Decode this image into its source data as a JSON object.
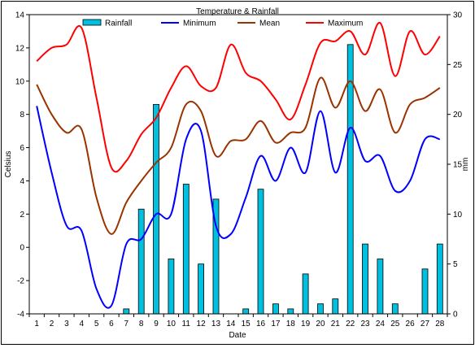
{
  "chart_data": {
    "type": "bar+line",
    "title": "Temperature & Rainfall",
    "xlabel": "Date",
    "ylabel_left": "Celsius",
    "ylabel_right": "mm",
    "categories": [
      "1",
      "2",
      "3",
      "4",
      "5",
      "6",
      "7",
      "8",
      "9",
      "10",
      "11",
      "12",
      "13",
      "14",
      "15",
      "16",
      "17",
      "18",
      "19",
      "20",
      "21",
      "22",
      "23",
      "24",
      "25",
      "26",
      "27",
      "28"
    ],
    "ylim_left": [
      -4,
      14
    ],
    "yticks_left": [
      "-4",
      "-2",
      "0",
      "2",
      "4",
      "6",
      "8",
      "10",
      "12",
      "14"
    ],
    "ylim_right": [
      0,
      30
    ],
    "yticks_right": [
      "0",
      "5",
      "10",
      "15",
      "20",
      "25",
      "30"
    ],
    "grid": false,
    "legend_position": "top",
    "legend": [
      {
        "label": "Rainfall",
        "kind": "bar",
        "color": "#00c0e0"
      },
      {
        "label": "Minimum",
        "kind": "line",
        "color": "#0000ff"
      },
      {
        "label": "Mean",
        "kind": "line",
        "color": "#993300"
      },
      {
        "label": "Maximum",
        "kind": "line",
        "color": "#ff0000"
      }
    ],
    "rainfall": [
      0,
      0,
      0,
      0,
      0,
      0,
      0.5,
      10.5,
      21,
      5.5,
      13,
      5,
      11.5,
      0,
      0.5,
      12.5,
      1,
      0.5,
      4,
      1,
      1.5,
      27,
      7,
      5.5,
      1,
      0,
      4.5,
      7
    ],
    "series": [
      {
        "name": "Minimum",
        "axis": "left",
        "color": "#0000ff",
        "values": [
          8.5,
          4.5,
          1.3,
          1.0,
          -2.5,
          -3.5,
          0.2,
          0.5,
          2.0,
          2.0,
          6.5,
          7.0,
          1.3,
          0.8,
          3.0,
          5.5,
          4.0,
          6.0,
          4.5,
          8.2,
          4.5,
          7.2,
          5.2,
          5.5,
          3.4,
          4.0,
          6.5,
          6.5
        ]
      },
      {
        "name": "Mean",
        "axis": "left",
        "color": "#993300",
        "values": [
          9.8,
          8.0,
          6.9,
          7.1,
          3.0,
          0.8,
          2.7,
          4.0,
          5.1,
          6.0,
          8.6,
          8.2,
          5.5,
          6.4,
          6.5,
          7.6,
          6.3,
          6.9,
          7.2,
          10.2,
          8.4,
          10.0,
          8.2,
          9.5,
          6.9,
          8.6,
          9.0,
          9.6
        ]
      },
      {
        "name": "Maximum",
        "axis": "left",
        "color": "#ff0000",
        "values": [
          11.2,
          12.0,
          12.2,
          13.2,
          9.0,
          4.8,
          5.2,
          6.8,
          7.8,
          9.6,
          10.9,
          9.7,
          9.6,
          12.2,
          10.5,
          10.0,
          8.9,
          7.7,
          9.8,
          12.3,
          12.4,
          13.0,
          11.6,
          13.5,
          10.3,
          13.0,
          11.6,
          12.7
        ]
      }
    ]
  }
}
